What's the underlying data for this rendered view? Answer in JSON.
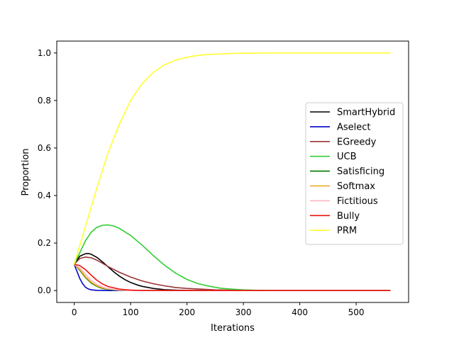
{
  "chart_data": {
    "type": "line",
    "title": "",
    "xlabel": "Iterations",
    "ylabel": "Proportion",
    "xlim": [
      -31,
      593
    ],
    "ylim": [
      -0.05,
      1.05
    ],
    "xticks": [
      0,
      100,
      200,
      300,
      400,
      500
    ],
    "yticks": [
      0.0,
      0.2,
      0.4,
      0.6,
      0.8,
      1.0
    ],
    "xtick_labels": [
      "0",
      "100",
      "200",
      "300",
      "400",
      "500"
    ],
    "ytick_labels": [
      "0.0",
      "0.2",
      "0.4",
      "0.6",
      "0.8",
      "1.0"
    ],
    "grid": false,
    "legend_position": "center-right",
    "series": [
      {
        "name": "SmartHybrid",
        "color": "#000000",
        "x": [
          0,
          10,
          20,
          25,
          30,
          40,
          50,
          60,
          70,
          80,
          90,
          100,
          110,
          120,
          140,
          160,
          180,
          200,
          250,
          300,
          560
        ],
        "y": [
          0.111,
          0.145,
          0.155,
          0.156,
          0.153,
          0.14,
          0.121,
          0.1,
          0.079,
          0.061,
          0.046,
          0.034,
          0.025,
          0.018,
          0.009,
          0.004,
          0.002,
          0.001,
          0.0,
          0.0,
          0.0
        ]
      },
      {
        "name": "Aselect",
        "color": "#0000cc",
        "x": [
          0,
          5,
          10,
          15,
          20,
          25,
          30,
          40,
          60,
          560
        ],
        "y": [
          0.111,
          0.08,
          0.05,
          0.028,
          0.014,
          0.007,
          0.003,
          0.001,
          0.0,
          0.0
        ]
      },
      {
        "name": "EGreedy",
        "color": "#993333",
        "x": [
          0,
          10,
          20,
          30,
          40,
          50,
          60,
          80,
          100,
          120,
          140,
          160,
          180,
          200,
          250,
          300,
          350,
          560
        ],
        "y": [
          0.111,
          0.135,
          0.141,
          0.138,
          0.128,
          0.115,
          0.101,
          0.077,
          0.057,
          0.041,
          0.029,
          0.02,
          0.013,
          0.009,
          0.003,
          0.001,
          0.0,
          0.0
        ]
      },
      {
        "name": "UCB",
        "color": "#33cc33",
        "x": [
          0,
          10,
          20,
          30,
          40,
          50,
          60,
          70,
          80,
          100,
          120,
          140,
          160,
          180,
          200,
          220,
          240,
          260,
          280,
          300,
          330,
          360,
          400,
          560
        ],
        "y": [
          0.111,
          0.16,
          0.21,
          0.245,
          0.266,
          0.275,
          0.276,
          0.272,
          0.262,
          0.232,
          0.192,
          0.148,
          0.107,
          0.073,
          0.047,
          0.029,
          0.018,
          0.01,
          0.006,
          0.003,
          0.001,
          0.0,
          0.0,
          0.0
        ]
      },
      {
        "name": "Satisficing",
        "color": "#007700",
        "x": [
          0,
          10,
          20,
          30,
          40,
          50,
          60,
          80,
          100,
          560
        ],
        "y": [
          0.111,
          0.085,
          0.055,
          0.032,
          0.018,
          0.009,
          0.005,
          0.001,
          0.0,
          0.0
        ]
      },
      {
        "name": "Softmax",
        "color": "#e6a817",
        "x": [
          0,
          10,
          20,
          30,
          40,
          50,
          60,
          80,
          100,
          560
        ],
        "y": [
          0.111,
          0.088,
          0.058,
          0.035,
          0.02,
          0.011,
          0.006,
          0.002,
          0.0,
          0.0
        ]
      },
      {
        "name": "Fictitious",
        "color": "#ffb6c1",
        "x": [
          0,
          10,
          20,
          30,
          40,
          50,
          60,
          80,
          100,
          560
        ],
        "y": [
          0.111,
          0.095,
          0.068,
          0.043,
          0.026,
          0.015,
          0.008,
          0.002,
          0.0,
          0.0
        ]
      },
      {
        "name": "Bully",
        "color": "#ee1111",
        "x": [
          0,
          10,
          20,
          30,
          40,
          50,
          60,
          80,
          100,
          120,
          560
        ],
        "y": [
          0.111,
          0.105,
          0.088,
          0.065,
          0.044,
          0.028,
          0.017,
          0.006,
          0.002,
          0.0,
          0.0
        ]
      },
      {
        "name": "PRM",
        "color": "#ffff33",
        "x": [
          0,
          20,
          40,
          60,
          80,
          100,
          120,
          140,
          160,
          180,
          200,
          220,
          240,
          260,
          280,
          300,
          320,
          350,
          400,
          450,
          500,
          560
        ],
        "y": [
          0.111,
          0.27,
          0.43,
          0.58,
          0.7,
          0.8,
          0.87,
          0.918,
          0.95,
          0.97,
          0.982,
          0.99,
          0.994,
          0.996,
          0.998,
          0.999,
          0.999,
          1.0,
          1.0,
          1.0,
          1.0,
          1.0
        ]
      }
    ]
  }
}
